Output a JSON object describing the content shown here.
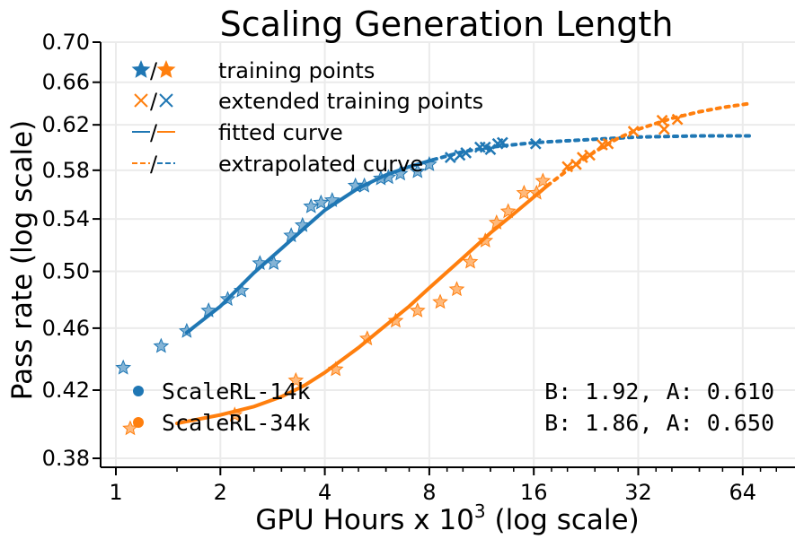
{
  "chart_data": {
    "type": "scatter",
    "title": "Scaling Generation Length",
    "xlabel": "GPU Hours x 10",
    "xlabel_sup": "3",
    "xlabel_suffix": " (log scale)",
    "ylabel": "Pass rate (log scale)",
    "xscale": "log2",
    "yscale": "log",
    "xlim": [
      0.9,
      85
    ],
    "ylim": [
      0.38,
      0.7
    ],
    "xticks": [
      1,
      2,
      4,
      8,
      16,
      32,
      64
    ],
    "xtick_labels": [
      "1",
      "2",
      "4",
      "8",
      "16",
      "32",
      "64"
    ],
    "yticks": [
      0.38,
      0.42,
      0.46,
      0.5,
      0.54,
      0.58,
      0.62,
      0.66,
      0.7
    ],
    "ytick_labels": [
      "0.38",
      "0.42",
      "0.46",
      "0.50",
      "0.54",
      "0.58",
      "0.62",
      "0.66",
      "0.70"
    ],
    "grid": true,
    "legend": {
      "placement": "top-left",
      "entries": [
        {
          "marker": "star",
          "sep": "/",
          "label": "training points"
        },
        {
          "marker": "x",
          "sep": "/",
          "label": "extended training points"
        },
        {
          "marker": "solid",
          "sep": "/",
          "label": "fitted curve"
        },
        {
          "marker": "dotted",
          "sep": "/",
          "label": "extrapolated curve"
        }
      ]
    },
    "series": [
      {
        "name": "ScaleRL-14k",
        "color": "#1f77b4",
        "fit_label": "B: 1.92, A: 0.610",
        "B": 1.92,
        "A": 0.61,
        "training_points": [
          [
            1.05,
            0.434
          ],
          [
            1.35,
            0.448
          ],
          [
            1.6,
            0.458
          ],
          [
            1.85,
            0.472
          ],
          [
            2.1,
            0.48
          ],
          [
            2.3,
            0.486
          ],
          [
            2.6,
            0.506
          ],
          [
            2.85,
            0.506
          ],
          [
            3.2,
            0.527
          ],
          [
            3.45,
            0.535
          ],
          [
            3.65,
            0.55
          ],
          [
            3.9,
            0.553
          ],
          [
            4.2,
            0.555
          ],
          [
            4.9,
            0.567
          ],
          [
            5.2,
            0.567
          ],
          [
            5.8,
            0.573
          ],
          [
            6.1,
            0.574
          ],
          [
            6.6,
            0.577
          ],
          [
            7.4,
            0.579
          ],
          [
            8.0,
            0.585
          ]
        ],
        "extended_points": [
          [
            9.2,
            0.591
          ],
          [
            9.8,
            0.593
          ],
          [
            10.2,
            0.595
          ],
          [
            11.2,
            0.6
          ],
          [
            11.6,
            0.6
          ],
          [
            12.0,
            0.598
          ],
          [
            12.6,
            0.603
          ],
          [
            13.0,
            0.604
          ],
          [
            16.2,
            0.603
          ]
        ],
        "fit_x": [
          1.6,
          2.0,
          2.5,
          3.0,
          3.5,
          4.0,
          5.0,
          6.0,
          7.0,
          8.2
        ],
        "fit_y": [
          0.457,
          0.475,
          0.499,
          0.517,
          0.533,
          0.547,
          0.565,
          0.576,
          0.583,
          0.589
        ],
        "extrap_x": [
          8.2,
          10.0,
          12.0,
          16.0,
          24.0,
          32.0,
          48.0,
          68.0
        ],
        "extrap_y": [
          0.589,
          0.596,
          0.6,
          0.604,
          0.607,
          0.609,
          0.61,
          0.61
        ]
      },
      {
        "name": "ScaleRL-34k",
        "color": "#ff7f0e",
        "fit_label": "B: 1.86, A: 0.650",
        "B": 1.86,
        "A": 0.65,
        "training_points": [
          [
            1.1,
            0.397
          ],
          [
            2.2,
            0.405
          ],
          [
            3.3,
            0.426
          ],
          [
            4.3,
            0.433
          ],
          [
            5.3,
            0.453
          ],
          [
            6.4,
            0.465
          ],
          [
            7.4,
            0.472
          ],
          [
            8.6,
            0.478
          ],
          [
            9.6,
            0.487
          ],
          [
            10.5,
            0.507
          ],
          [
            11.6,
            0.523
          ],
          [
            12.5,
            0.537
          ],
          [
            13.5,
            0.546
          ],
          [
            15.0,
            0.561
          ],
          [
            16.3,
            0.561
          ],
          [
            17.0,
            0.571
          ]
        ],
        "extended_points": [
          [
            20.0,
            0.583
          ],
          [
            21.2,
            0.585
          ],
          [
            22.1,
            0.591
          ],
          [
            23.2,
            0.593
          ],
          [
            25.2,
            0.602
          ],
          [
            26.2,
            0.603
          ],
          [
            31.0,
            0.614
          ],
          [
            37.5,
            0.624
          ],
          [
            38.0,
            0.616
          ],
          [
            41.5,
            0.625
          ]
        ],
        "fit_x": [
          1.5,
          2.0,
          2.5,
          3.0,
          3.5,
          4.0,
          5.0,
          6.0,
          7.0,
          8.0,
          10.0,
          12.0,
          14.0,
          17.5
        ],
        "fit_y": [
          0.4,
          0.405,
          0.41,
          0.416,
          0.423,
          0.431,
          0.447,
          0.462,
          0.475,
          0.488,
          0.51,
          0.529,
          0.544,
          0.567
        ],
        "extrap_x": [
          17.5,
          20.0,
          24.0,
          28.0,
          32.0,
          40.0,
          48.0,
          56.0,
          68.0
        ],
        "extrap_y": [
          0.567,
          0.58,
          0.596,
          0.608,
          0.616,
          0.626,
          0.632,
          0.636,
          0.64
        ]
      }
    ]
  }
}
